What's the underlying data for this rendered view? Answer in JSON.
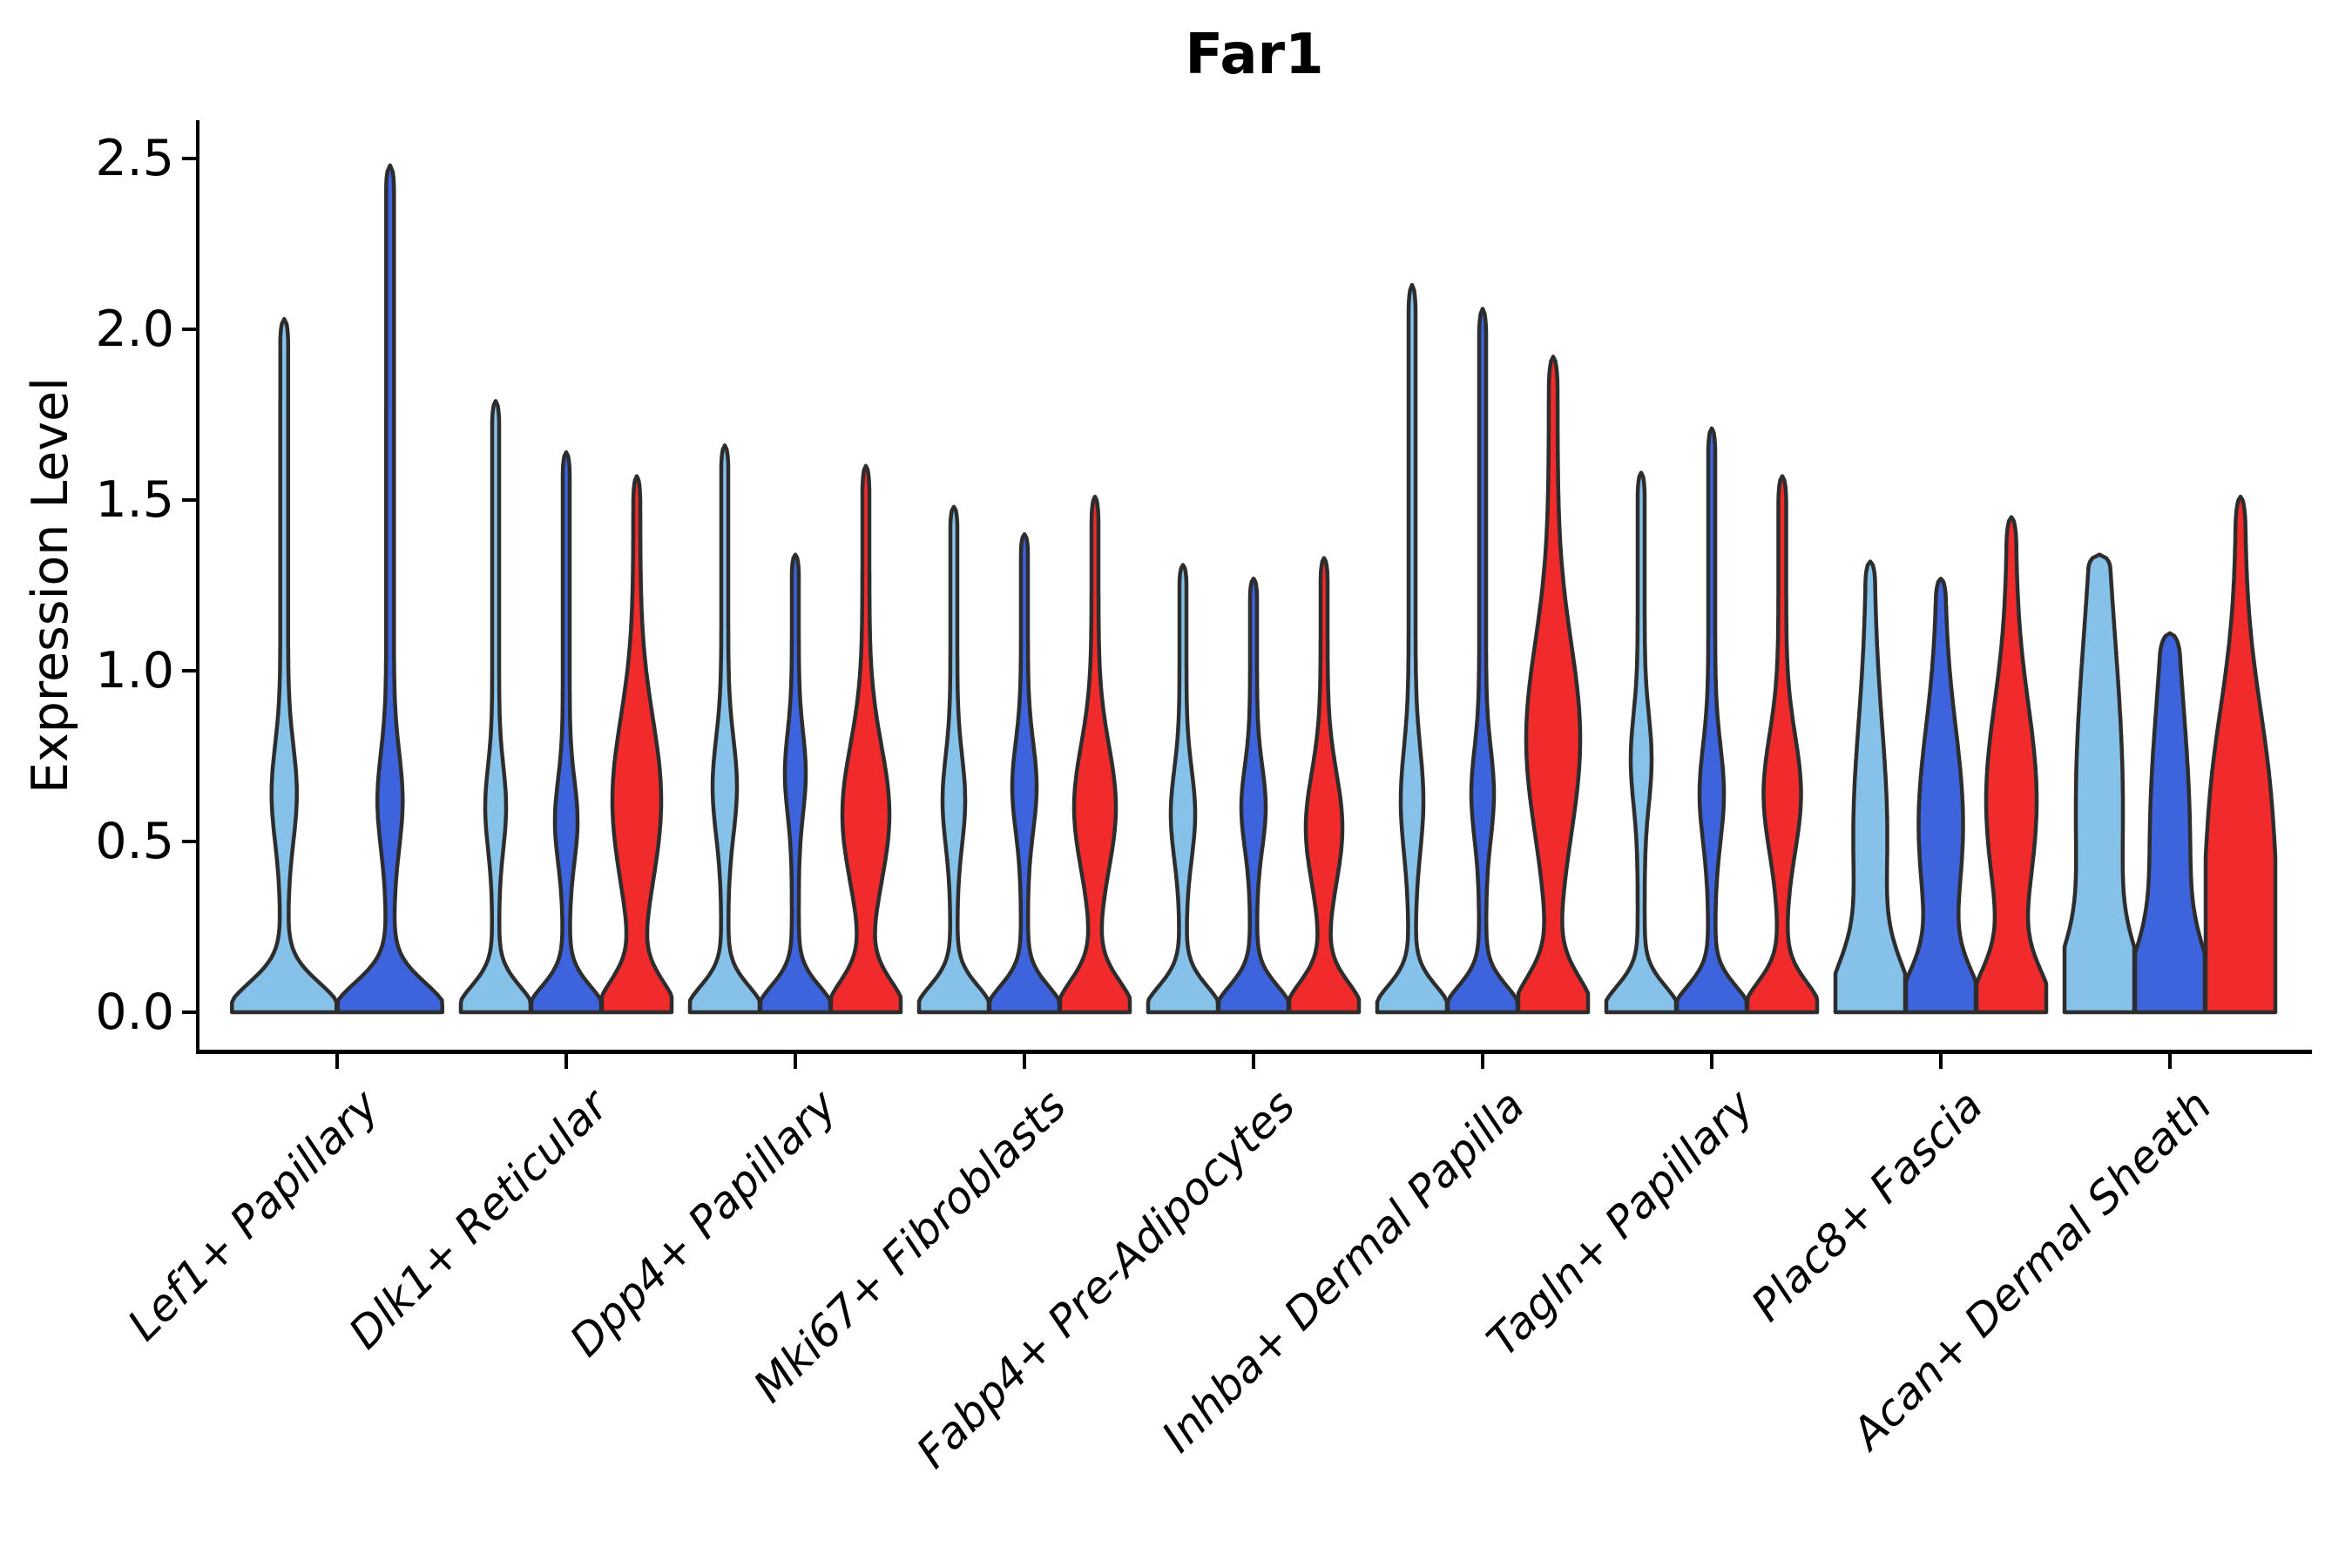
{
  "title": "Far1",
  "axes": {
    "ylabel": "Expression Level",
    "ytick_labels": [
      "0.0",
      "0.5",
      "1.0",
      "1.5",
      "2.0",
      "2.5"
    ]
  },
  "chart_data": {
    "type": "violin",
    "title": "Far1",
    "xlabel": "",
    "ylabel": "Expression Level",
    "yticks": [
      0.0,
      0.5,
      1.0,
      1.5,
      2.0,
      2.5
    ],
    "ylim": [
      -0.12,
      2.62
    ],
    "grid": false,
    "legend_position": "none",
    "palette": {
      "light_blue": "#85C1E9",
      "dark_blue": "#3D64DC",
      "red": "#F12B2B",
      "outline": "#2D2D2D",
      "axis": "#000000"
    },
    "categories": [
      "Lef1+ Papillary",
      "Dlk1+ Reticular",
      "Dpp4+ Papillary",
      "Mki67+ Fibroblasts",
      "Fabp4+ Pre-Adipocytes",
      "Inhba+ Dermal Papilla",
      "Tagln+ Papillary",
      "Plac8+ Fascia",
      "Acan+ Dermal Sheath"
    ],
    "groups": [
      {
        "label": "Lef1+ Papillary",
        "violins": [
          {
            "color_key": "light_blue",
            "max": 2.03,
            "hw": 60,
            "b0": 0.085,
            "wb": 10,
            "m": 0.64,
            "sb": 0.14,
            "ws": 4.5,
            "tt": 0.07
          },
          {
            "color_key": "dark_blue",
            "max": 2.48,
            "hw": 60,
            "b0": 0.085,
            "wb": 10,
            "m": 0.62,
            "sb": 0.14,
            "ws": 4.5,
            "tt": 0.07
          }
        ]
      },
      {
        "label": "Dlk1+ Reticular",
        "violins": [
          {
            "color_key": "light_blue",
            "max": 1.79,
            "hw": 40,
            "b0": 0.075,
            "wb": 8,
            "m": 0.6,
            "sb": 0.12,
            "ws": 4,
            "tt": 0.07
          },
          {
            "color_key": "dark_blue",
            "max": 1.64,
            "hw": 40,
            "b0": 0.075,
            "wb": 9,
            "m": 0.56,
            "sb": 0.12,
            "ws": 4,
            "tt": 0.07
          },
          {
            "color_key": "red",
            "max": 1.57,
            "hw": 40,
            "b0": 0.09,
            "wb": 24,
            "m": 0.62,
            "sb": 0.24,
            "ws": 4,
            "tt": 0.08
          }
        ]
      },
      {
        "label": "Dpp4+ Papillary",
        "violins": [
          {
            "color_key": "light_blue",
            "max": 1.66,
            "hw": 40,
            "b0": 0.075,
            "wb": 10,
            "m": 0.66,
            "sb": 0.14,
            "ws": 4,
            "tt": 0.07
          },
          {
            "color_key": "dark_blue",
            "max": 1.34,
            "hw": 40,
            "b0": 0.075,
            "wb": 8,
            "m": 0.7,
            "sb": 0.12,
            "ws": 4,
            "tt": 0.06
          },
          {
            "color_key": "red",
            "max": 1.6,
            "hw": 40,
            "b0": 0.09,
            "wb": 23,
            "m": 0.58,
            "sb": 0.2,
            "ws": 4,
            "tt": 0.08
          }
        ]
      },
      {
        "label": "Mki67+ Fibroblasts",
        "violins": [
          {
            "color_key": "light_blue",
            "max": 1.48,
            "hw": 40,
            "b0": 0.075,
            "wb": 9,
            "m": 0.62,
            "sb": 0.13,
            "ws": 4,
            "tt": 0.06
          },
          {
            "color_key": "dark_blue",
            "max": 1.4,
            "hw": 40,
            "b0": 0.075,
            "wb": 10,
            "m": 0.66,
            "sb": 0.13,
            "ws": 4,
            "tt": 0.06
          },
          {
            "color_key": "red",
            "max": 1.51,
            "hw": 40,
            "b0": 0.09,
            "wb": 20,
            "m": 0.6,
            "sb": 0.18,
            "ws": 4,
            "tt": 0.08
          }
        ]
      },
      {
        "label": "Fabp4+ Pre-Adipocytes",
        "violins": [
          {
            "color_key": "light_blue",
            "max": 1.31,
            "hw": 40,
            "b0": 0.075,
            "wb": 10,
            "m": 0.58,
            "sb": 0.13,
            "ws": 4,
            "tt": 0.06
          },
          {
            "color_key": "dark_blue",
            "max": 1.27,
            "hw": 40,
            "b0": 0.075,
            "wb": 10,
            "m": 0.6,
            "sb": 0.12,
            "ws": 4,
            "tt": 0.06
          },
          {
            "color_key": "red",
            "max": 1.33,
            "hw": 40,
            "b0": 0.085,
            "wb": 17,
            "m": 0.54,
            "sb": 0.16,
            "ws": 4,
            "tt": 0.07
          }
        ]
      },
      {
        "label": "Inhba+ Dermal Papilla",
        "violins": [
          {
            "color_key": "light_blue",
            "max": 2.13,
            "hw": 40,
            "b0": 0.075,
            "wb": 9,
            "m": 0.62,
            "sb": 0.15,
            "ws": 4,
            "tt": 0.08
          },
          {
            "color_key": "dark_blue",
            "max": 2.06,
            "hw": 40,
            "b0": 0.075,
            "wb": 9,
            "m": 0.64,
            "sb": 0.13,
            "ws": 4,
            "tt": 0.08
          },
          {
            "color_key": "red",
            "max": 1.92,
            "hw": 40,
            "b0": 0.1,
            "wb": 26,
            "m": 0.8,
            "sb": 0.28,
            "ws": 5,
            "tt": 0.1
          }
        ]
      },
      {
        "label": "Tagln+ Papillary",
        "violins": [
          {
            "color_key": "light_blue",
            "max": 1.58,
            "hw": 40,
            "b0": 0.075,
            "wb": 8,
            "m": 0.74,
            "sb": 0.13,
            "ws": 4,
            "tt": 0.07
          },
          {
            "color_key": "dark_blue",
            "max": 1.71,
            "hw": 40,
            "b0": 0.075,
            "wb": 10,
            "m": 0.64,
            "sb": 0.14,
            "ws": 4,
            "tt": 0.07
          },
          {
            "color_key": "red",
            "max": 1.57,
            "hw": 40,
            "b0": 0.085,
            "wb": 17,
            "m": 0.64,
            "sb": 0.17,
            "ws": 4.5,
            "tt": 0.08
          }
        ]
      },
      {
        "label": "Plac8+ Fascia",
        "violins": [
          {
            "color_key": "light_blue",
            "max": 1.32,
            "hw": 40,
            "b0": 0.14,
            "wb": 15,
            "m": 0.52,
            "sb": 0.32,
            "ws": 4.5,
            "tt": 0.06
          },
          {
            "color_key": "dark_blue",
            "max": 1.27,
            "hw": 40,
            "b0": 0.12,
            "wb": 21,
            "m": 0.55,
            "sb": 0.28,
            "ws": 4.5,
            "tt": 0.06
          },
          {
            "color_key": "red",
            "max": 1.45,
            "hw": 40,
            "b0": 0.12,
            "wb": 24,
            "m": 0.62,
            "sb": 0.28,
            "ws": 5,
            "tt": 0.08
          }
        ]
      },
      {
        "label": "Acan+ Dermal Sheath",
        "violins": [
          {
            "color_key": "light_blue",
            "max": 1.34,
            "hw": 40,
            "b0": 0.16,
            "wb": 23,
            "m": 0.6,
            "sb": 0.5,
            "ws": 4,
            "tt": 0.04
          },
          {
            "color_key": "dark_blue",
            "max": 1.11,
            "hw": 40,
            "b0": 0.16,
            "wb": 19,
            "m": 0.5,
            "sb": 0.4,
            "ws": 4,
            "tt": 0.06
          },
          {
            "color_key": "red",
            "max": 1.51,
            "hw": 40,
            "b0": 0.3,
            "wb": 26,
            "m": 0.62,
            "sb": 0.3,
            "ws": 5,
            "tt": 0.09
          }
        ]
      }
    ]
  }
}
